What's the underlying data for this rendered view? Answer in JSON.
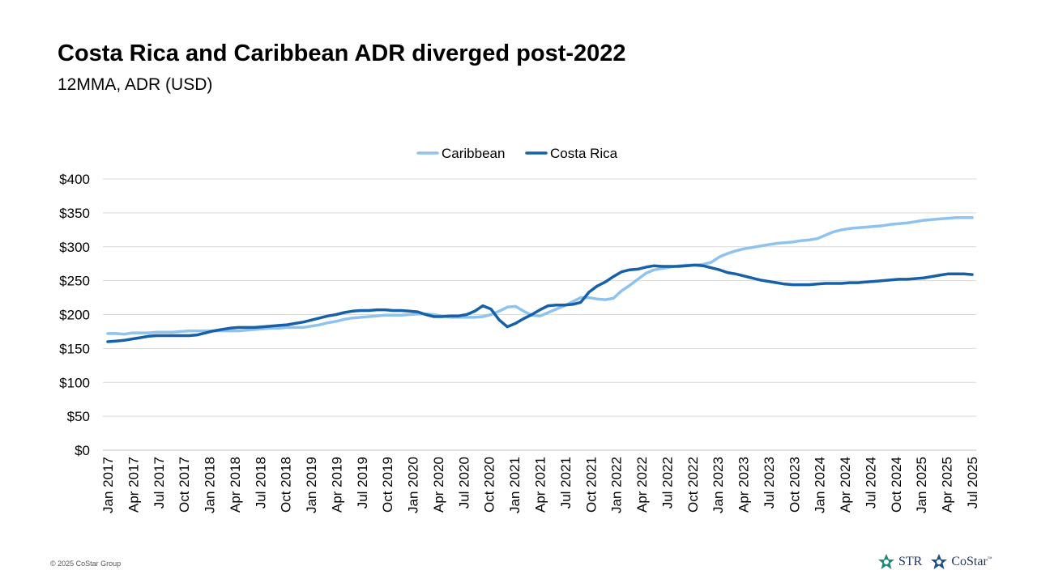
{
  "header": {
    "title": "Costa Rica and Caribbean ADR diverged post-2022",
    "subtitle": "12MMA, ADR (USD)"
  },
  "footer": {
    "copyright": "© 2025 CoStar Group",
    "logos": [
      {
        "name": "STR",
        "text": "STR",
        "color": "#1b8a7a"
      },
      {
        "name": "CoStar",
        "text": "CoStar",
        "mark": "™",
        "color": "#1f4e8c"
      }
    ]
  },
  "chart_data": {
    "type": "line",
    "title": "Costa Rica and Caribbean ADR diverged post-2022",
    "xlabel": "",
    "ylabel": "",
    "ylim": [
      0,
      400
    ],
    "y_ticks": [
      0,
      50,
      100,
      150,
      200,
      250,
      300,
      350,
      400
    ],
    "y_tick_labels": [
      "$0",
      "$50",
      "$100",
      "$150",
      "$200",
      "$250",
      "$300",
      "$350",
      "$400"
    ],
    "legend_position": "top-center",
    "grid": true,
    "x_tick_labels": [
      "Jan 2017",
      "Apr 2017",
      "Jul 2017",
      "Oct 2017",
      "Jan 2018",
      "Apr 2018",
      "Jul 2018",
      "Oct 2018",
      "Jan 2019",
      "Apr 2019",
      "Jul 2019",
      "Oct 2019",
      "Jan 2020",
      "Apr 2020",
      "Jul 2020",
      "Oct 2020",
      "Jan 2021",
      "Apr 2021",
      "Jul 2021",
      "Oct 2021",
      "Jan 2022",
      "Apr 2022",
      "Jul 2022",
      "Oct 2022",
      "Jan 2023",
      "Apr 2023",
      "Jul 2023",
      "Oct 2023",
      "Jan 2024",
      "Apr 2024",
      "Jul 2024",
      "Oct 2024",
      "Jan 2025",
      "Apr 2025",
      "Jul 2025"
    ],
    "series": [
      {
        "name": "Caribbean",
        "color": "#8ec3ef",
        "values": [
          172,
          172,
          171,
          173,
          173,
          173,
          174,
          174,
          174,
          175,
          176,
          176,
          176,
          176,
          176,
          176,
          176,
          177,
          178,
          179,
          180,
          180,
          181,
          181,
          181,
          183,
          185,
          188,
          190,
          193,
          195,
          196,
          197,
          198,
          199,
          199,
          199,
          200,
          201,
          201,
          200,
          198,
          196,
          196,
          196,
          196,
          197,
          200,
          205,
          211,
          212,
          205,
          199,
          198,
          203,
          208,
          213,
          219,
          225,
          225,
          223,
          222,
          224,
          235,
          243,
          252,
          261,
          266,
          268,
          270,
          272,
          273,
          273,
          274,
          277,
          285,
          290,
          294,
          297,
          299,
          301,
          303,
          305,
          306,
          307,
          309,
          310,
          312,
          317,
          322,
          325,
          327,
          328,
          329,
          330,
          331,
          333,
          334,
          335,
          337,
          339,
          340,
          341,
          342,
          343,
          343,
          343
        ]
      },
      {
        "name": "Costa Rica",
        "color": "#1560a8",
        "values": [
          160,
          161,
          162,
          164,
          166,
          168,
          169,
          169,
          169,
          169,
          169,
          170,
          173,
          176,
          178,
          180,
          181,
          181,
          181,
          182,
          183,
          184,
          185,
          187,
          189,
          192,
          195,
          198,
          200,
          203,
          205,
          206,
          206,
          207,
          207,
          206,
          206,
          205,
          204,
          200,
          197,
          197,
          198,
          198,
          200,
          205,
          213,
          208,
          192,
          182,
          187,
          194,
          200,
          207,
          213,
          214,
          214,
          215,
          218,
          233,
          242,
          248,
          256,
          263,
          266,
          267,
          270,
          272,
          271,
          271,
          271,
          272,
          273,
          272,
          269,
          266,
          262,
          260,
          257,
          254,
          251,
          249,
          247,
          245,
          244,
          244,
          244,
          245,
          246,
          246,
          246,
          247,
          247,
          248,
          249,
          250,
          251,
          252,
          252,
          253,
          254,
          256,
          258,
          260,
          260,
          260,
          259
        ]
      }
    ]
  }
}
